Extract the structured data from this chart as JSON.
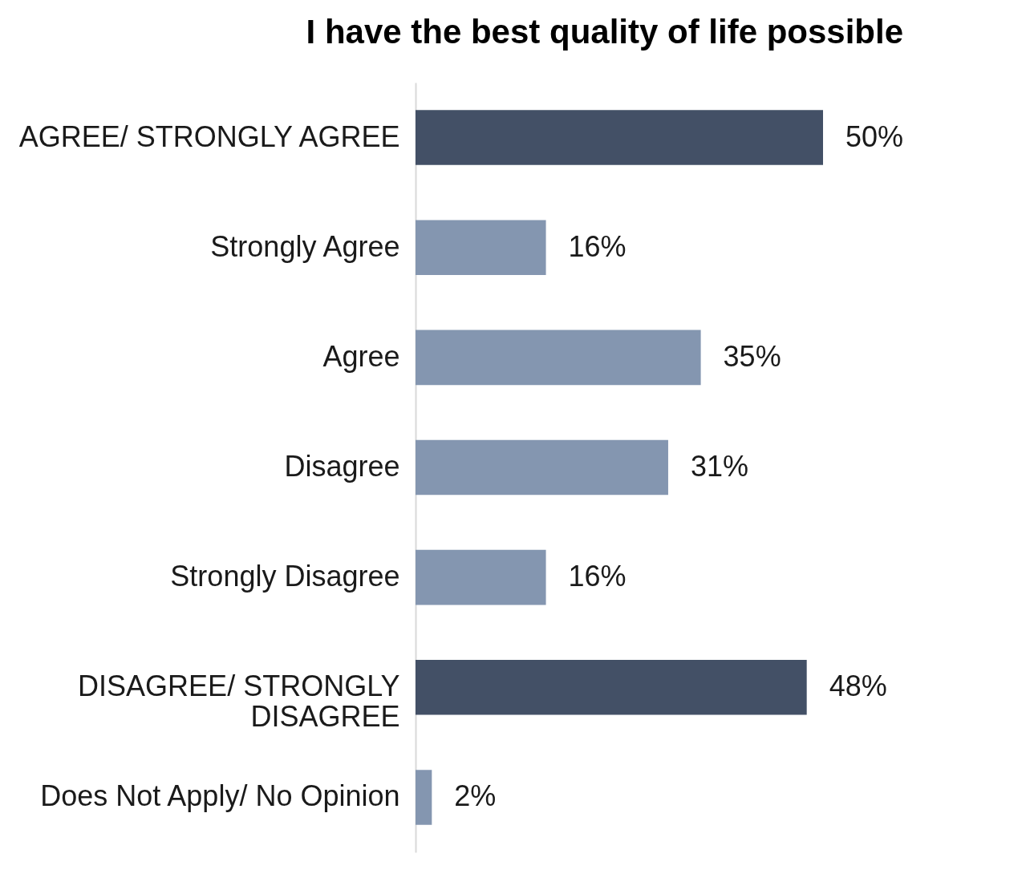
{
  "chart_data": {
    "type": "bar",
    "orientation": "horizontal",
    "title": "I have the best quality of life possible",
    "categories": [
      "AGREE/ STRONGLY AGREE",
      "Strongly Agree",
      "Agree",
      "Disagree",
      "Strongly Disagree",
      "DISAGREE/ STRONGLY DISAGREE",
      "Does Not Apply/ No Opinion"
    ],
    "values": [
      50,
      16,
      35,
      31,
      16,
      48,
      2
    ],
    "value_labels": [
      "50%",
      "16%",
      "35%",
      "31%",
      "16%",
      "48%",
      "2%"
    ],
    "colors": [
      "#435066",
      "#8496b0",
      "#8496b0",
      "#8496b0",
      "#8496b0",
      "#435066",
      "#8496b0"
    ]
  }
}
